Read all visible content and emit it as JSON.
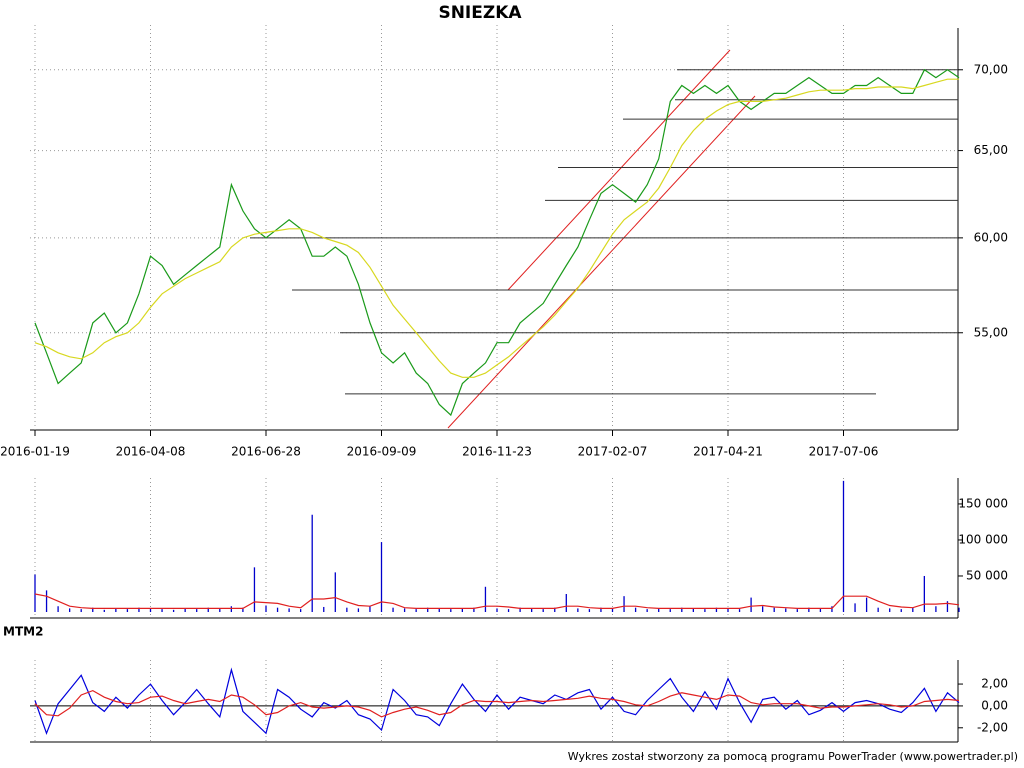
{
  "chart_data": [
    {
      "type": "line",
      "title": "SNIEZKA",
      "log_scale": true,
      "grid": true,
      "categories": [
        "2016-01-19",
        null,
        null,
        null,
        null,
        null,
        null,
        null,
        null,
        null,
        "2016-04-08",
        null,
        null,
        null,
        null,
        null,
        null,
        null,
        null,
        null,
        "2016-06-28",
        null,
        null,
        null,
        null,
        null,
        null,
        null,
        null,
        null,
        "2016-09-09",
        null,
        null,
        null,
        null,
        null,
        null,
        null,
        null,
        null,
        "2016-11-23",
        null,
        null,
        null,
        null,
        null,
        null,
        null,
        null,
        null,
        "2017-02-07",
        null,
        null,
        null,
        null,
        null,
        null,
        null,
        null,
        null,
        "2017-04-21",
        null,
        null,
        null,
        null,
        null,
        null,
        null,
        null,
        null,
        "2017-07-06",
        null,
        null,
        null,
        null,
        null,
        null,
        null,
        null,
        null,
        null
      ],
      "series": [
        {
          "color": "#1a9a1a",
          "values": [
            55.5,
            54,
            52.5,
            53,
            53.5,
            55.5,
            56,
            55,
            55.5,
            57,
            59,
            58.5,
            57.5,
            58,
            58.5,
            59,
            59.5,
            63,
            61.5,
            60.5,
            60,
            60.5,
            61,
            60.5,
            59,
            59,
            59.5,
            59,
            57.5,
            55.5,
            54,
            53.5,
            54,
            53,
            52.5,
            51.5,
            51,
            52.5,
            53,
            53.5,
            54.5,
            54.5,
            55.5,
            56,
            56.5,
            57.5,
            58.5,
            59.5,
            61,
            62.5,
            63,
            62.5,
            62,
            63,
            64.5,
            68,
            69,
            68.5,
            69,
            68.5,
            69,
            68,
            67.5,
            68,
            68.5,
            68.5,
            69,
            69.5,
            69,
            68.5,
            68.5,
            69,
            69,
            69.5,
            69,
            68.5,
            68.5,
            70,
            69.5,
            70,
            69.5
          ]
        },
        {
          "color": "#d8d820",
          "values": [
            54.5,
            54.3,
            54,
            53.8,
            53.7,
            54,
            54.5,
            54.8,
            55,
            55.5,
            56.3,
            57,
            57.4,
            57.8,
            58.1,
            58.4,
            58.7,
            59.5,
            60,
            60.2,
            60.3,
            60.4,
            60.5,
            60.5,
            60.3,
            60,
            59.8,
            59.6,
            59.2,
            58.4,
            57.4,
            56.4,
            55.7,
            55,
            54.3,
            53.6,
            53,
            52.8,
            52.8,
            53,
            53.4,
            53.8,
            54.3,
            54.8,
            55.3,
            55.9,
            56.6,
            57.3,
            58.2,
            59.2,
            60.2,
            61,
            61.5,
            62,
            62.8,
            64,
            65.3,
            66.2,
            66.9,
            67.4,
            67.8,
            68,
            68,
            68,
            68.1,
            68.2,
            68.4,
            68.6,
            68.7,
            68.7,
            68.7,
            68.8,
            68.8,
            68.9,
            68.9,
            68.9,
            68.8,
            69,
            69.2,
            69.4,
            69.4
          ]
        }
      ],
      "levels": [
        52,
        55,
        57.2,
        60,
        62.1,
        64,
        66.9,
        68.1,
        70
      ],
      "ylim": [
        50.4,
        72.6
      ],
      "yticks": [
        {
          "value": 55,
          "label": "55,00"
        },
        {
          "value": 60,
          "label": "60,00"
        },
        {
          "value": 65,
          "label": "65,00"
        },
        {
          "value": 70,
          "label": "70,00"
        }
      ]
    },
    {
      "type": "bar",
      "grid": false,
      "series": [
        {
          "color": "#0000cc",
          "values": [
            52000,
            30000,
            8000,
            5000,
            4000,
            6000,
            3000,
            5000,
            4000,
            6000,
            5000,
            4000,
            3000,
            5000,
            4000,
            6000,
            5000,
            8000,
            6000,
            62000,
            9000,
            6000,
            5000,
            4000,
            135000,
            7000,
            55000,
            6000,
            5000,
            8000,
            97000,
            6000,
            5000,
            4000,
            6000,
            5000,
            4000,
            5000,
            6000,
            35000,
            5000,
            4000,
            6000,
            5000,
            4000,
            6000,
            25000,
            5000,
            4000,
            6000,
            5000,
            22000,
            6000,
            4000,
            5000,
            4000,
            6000,
            5000,
            4000,
            6000,
            5000,
            4000,
            20000,
            8000,
            6000,
            5000,
            4000,
            6000,
            5000,
            8000,
            182000,
            12000,
            20000,
            6000,
            5000,
            4000,
            6000,
            50000,
            8000,
            15000,
            6000
          ]
        },
        {
          "color": "#e02020",
          "values": [
            25000,
            22000,
            15000,
            8000,
            6000,
            5000,
            5000,
            5000,
            5000,
            5000,
            5000,
            5000,
            5000,
            5000,
            5000,
            5000,
            5000,
            5000,
            5000,
            14000,
            13000,
            12000,
            8000,
            6000,
            18000,
            18000,
            20000,
            14000,
            9000,
            8000,
            14000,
            12000,
            6000,
            5000,
            5000,
            5000,
            5000,
            5000,
            5000,
            8000,
            8000,
            7000,
            5000,
            5000,
            5000,
            5000,
            8000,
            8000,
            6000,
            5000,
            5000,
            8000,
            8000,
            6000,
            5000,
            5000,
            5000,
            5000,
            5000,
            5000,
            5000,
            5000,
            8000,
            9000,
            7000,
            6000,
            5000,
            5000,
            5000,
            5000,
            22000,
            22000,
            22000,
            15000,
            9000,
            7000,
            6000,
            11000,
            11000,
            12000,
            10000
          ]
        }
      ],
      "ylim": [
        0,
        186000
      ],
      "yticks": [
        {
          "value": 50000,
          "label": "50 000"
        },
        {
          "value": 100000,
          "label": "100 000"
        },
        {
          "value": 150000,
          "label": "150 000"
        }
      ]
    },
    {
      "type": "line",
      "title": "MTM2",
      "grid": false,
      "series": [
        {
          "color": "#0000dd",
          "values": [
            0.5,
            -2.5,
            0.2,
            1.5,
            2.8,
            0.3,
            -0.5,
            0.8,
            -0.2,
            1,
            2,
            0.5,
            -0.8,
            0.3,
            1.5,
            0.2,
            -1,
            3.3,
            -0.5,
            -1.5,
            -2.5,
            1.5,
            0.8,
            -0.3,
            -1,
            0.3,
            -0.2,
            0.5,
            -0.8,
            -1.2,
            -2.2,
            1.5,
            0.5,
            -0.8,
            -1,
            -1.8,
            0.2,
            2,
            0.6,
            -0.5,
            1,
            -0.3,
            0.8,
            0.5,
            0.2,
            1,
            0.6,
            1.2,
            1.5,
            -0.3,
            0.8,
            -0.5,
            -0.8,
            0.5,
            1.5,
            2.5,
            0.8,
            -0.5,
            1.3,
            -0.3,
            2.5,
            0.3,
            -1.5,
            0.6,
            0.8,
            -0.3,
            0.5,
            -0.8,
            -0.4,
            0.3,
            -0.5,
            0.3,
            0.5,
            0.2,
            -0.3,
            -0.6,
            0.3,
            1.6,
            -0.5,
            1.2,
            0.3
          ]
        },
        {
          "color": "#e02020",
          "values": [
            0.2,
            -0.8,
            -0.9,
            -0.2,
            1,
            1.4,
            0.8,
            0.4,
            0.2,
            0.3,
            0.8,
            0.9,
            0.5,
            0.2,
            0.4,
            0.6,
            0.4,
            1,
            0.8,
            0.1,
            -0.8,
            -0.6,
            0,
            0.3,
            -0.1,
            -0.2,
            -0.1,
            0,
            -0.1,
            -0.4,
            -1,
            -0.6,
            -0.3,
            -0.1,
            -0.4,
            -0.8,
            -0.6,
            0.1,
            0.5,
            0.4,
            0.4,
            0.3,
            0.4,
            0.5,
            0.4,
            0.5,
            0.6,
            0.7,
            0.9,
            0.7,
            0.6,
            0.4,
            0.1,
            0,
            0.4,
            0.9,
            1.2,
            1,
            0.8,
            0.6,
            1,
            0.9,
            0.3,
            0.1,
            0.2,
            0.2,
            0.2,
            0,
            -0.2,
            -0.1,
            -0.1,
            0,
            0.1,
            0.2,
            0.1,
            -0.1,
            0,
            0.4,
            0.5,
            0.6,
            0.5
          ]
        }
      ],
      "ylim": [
        -3.3,
        4.2
      ],
      "yticks": [
        {
          "value": -2,
          "label": "-2,00"
        },
        {
          "value": 0,
          "label": "0,00"
        },
        {
          "value": 2,
          "label": "2,00"
        }
      ]
    }
  ],
  "footer": "Wykres został stworzony za pomocą programu PowerTrader (www.powertrader.pl)"
}
